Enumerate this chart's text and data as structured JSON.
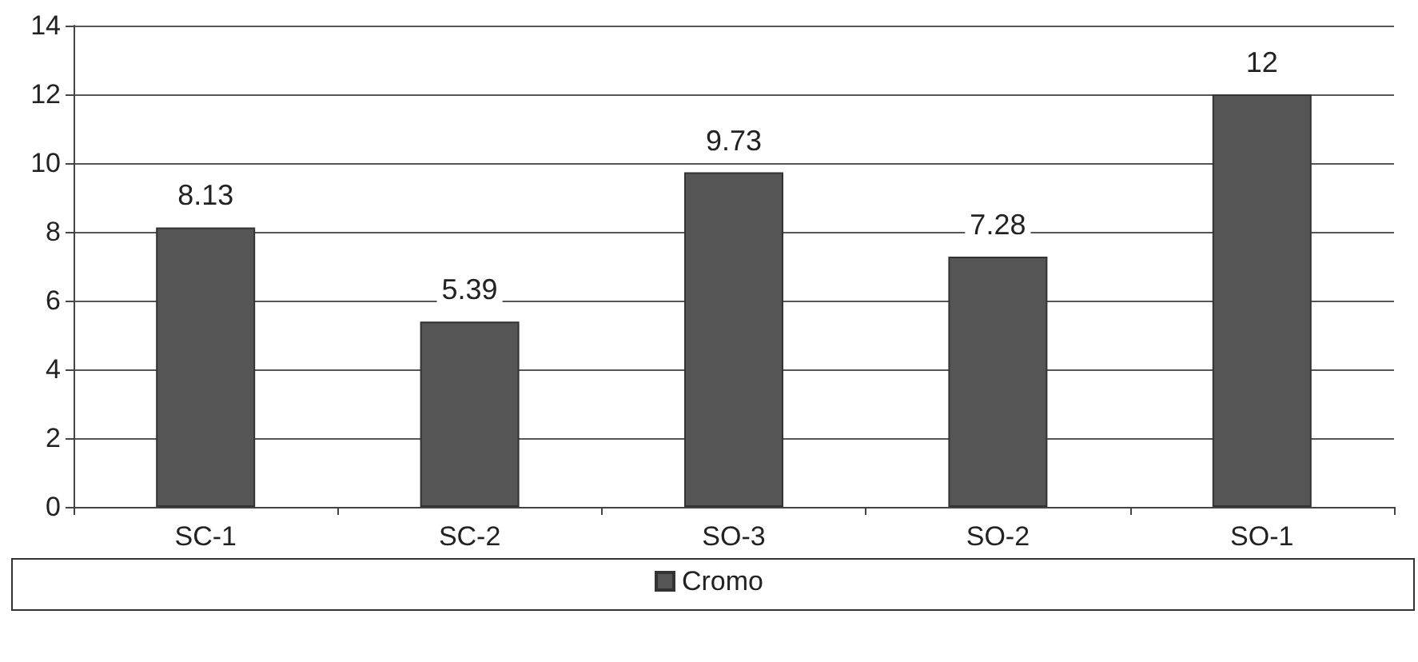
{
  "chart_data": {
    "type": "bar",
    "categories": [
      "SC-1",
      "SC-2",
      "SO-3",
      "SO-2",
      "SO-1"
    ],
    "series": [
      {
        "name": "Cromo",
        "color": "#555555",
        "values": [
          8.13,
          5.39,
          9.73,
          7.28,
          12
        ]
      }
    ],
    "ylim": [
      0,
      14
    ],
    "yticks": [
      0,
      2,
      4,
      6,
      8,
      10,
      12,
      14
    ],
    "grid": "y",
    "legend": "bottom",
    "data_labels": true
  }
}
